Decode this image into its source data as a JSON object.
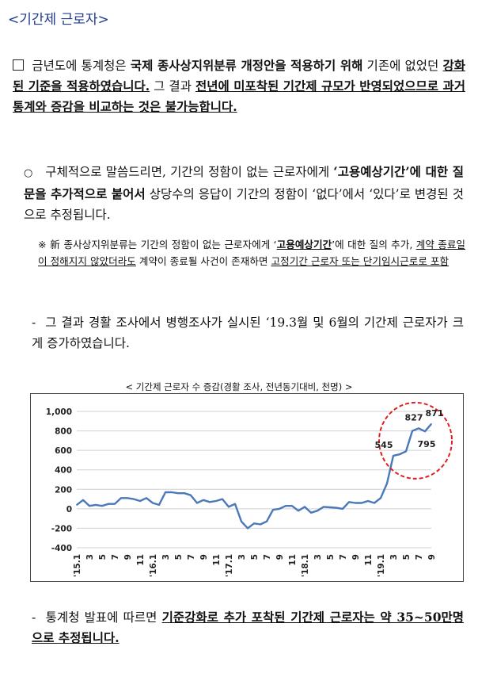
{
  "title": "<기간제 근로자>",
  "section1": {
    "p1": "금년도에 통계청은 ",
    "p2": "국제 종사상지위분류 개정안을 적용하기 위해",
    "p3": " 기존에 없었던 ",
    "p4": "강화된 기준을 적용하였습니다.",
    "p5": " 그 결과 ",
    "p6": "전년에 미포착된 기간제 규모가 반영되었으므로 과거 통계와 증감을 비교하는 것은 불가능합니다."
  },
  "section2": {
    "bullet": "○",
    "p1": "구체적으로 말씀드리면, 기간의 정함이 없는 근로자에게 ",
    "p2": "‘고용예상기간’에 대한 질문을 추가적으로 붙어서",
    "p3": " 상당수의 응답이 기간의 정함이 ‘없다’에서 ‘있다’로 변경된 것으로 추정됩니다."
  },
  "note": {
    "mark": "※",
    "p1": "新 종사상지위분류는 기간의 정함이 없는 근로자에게 ‘",
    "p2": "고용예상기간",
    "p3": "’에 대한 질의 추가, ",
    "p4": "계약 종료일이 정해지지 않았더라도",
    "p5": " 계약이 종료될 사건이 존재하면 ",
    "p6": "고정기간 근로자 또는 단기임시근로로 포함"
  },
  "section3": {
    "dash": "-",
    "text": "그 결과 경활 조사에서 병행조사가 실시된 ‘19.3월 및 6월의 기간제 근로자가 크게 증가하였습니다."
  },
  "section4": {
    "dash": "-",
    "p1": "통계청 발표에 따르면 ",
    "p2": "기준강화로 추가 포착된 기간제 근로자는 약 35~50만명으로 추정됩니다."
  },
  "chart_data": {
    "type": "line",
    "title": "< 기간제 근로자 수 증감(경활 조사, 전년동기대비, 천명) >",
    "ylim": [
      -400,
      1000
    ],
    "yticks": [
      -400,
      -200,
      0,
      200,
      400,
      600,
      800,
      1000
    ],
    "ytick_labels": [
      "-400",
      "-200",
      "0",
      "200",
      "400",
      "600",
      "800",
      "1,000"
    ],
    "xtick_labels": [
      "'15.1",
      "3",
      "5",
      "7",
      "9",
      "11",
      "'16.1",
      "3",
      "5",
      "7",
      "9",
      "11",
      "'17.1",
      "3",
      "5",
      "7",
      "9",
      "11",
      "'18.1",
      "3",
      "5",
      "7",
      "9",
      "11",
      "'19.1",
      "3",
      "5",
      "7",
      "9"
    ],
    "grid": "horizontal",
    "line_color": "#4a78b8",
    "highlight_color": "#e02020",
    "values": [
      40,
      90,
      30,
      40,
      30,
      50,
      50,
      110,
      110,
      100,
      80,
      110,
      60,
      40,
      170,
      170,
      160,
      160,
      140,
      60,
      90,
      70,
      80,
      100,
      20,
      50,
      -130,
      -200,
      -150,
      -160,
      -130,
      -10,
      0,
      30,
      30,
      -20,
      20,
      -40,
      -20,
      20,
      15,
      10,
      0,
      70,
      60,
      60,
      80,
      60,
      110,
      260,
      545,
      560,
      590,
      800,
      827,
      795,
      871
    ],
    "annotations": [
      {
        "index": 50,
        "label": "545"
      },
      {
        "index": 54,
        "label": "827"
      },
      {
        "index": 55,
        "label": "795"
      },
      {
        "index": 56,
        "label": "871"
      }
    ]
  }
}
